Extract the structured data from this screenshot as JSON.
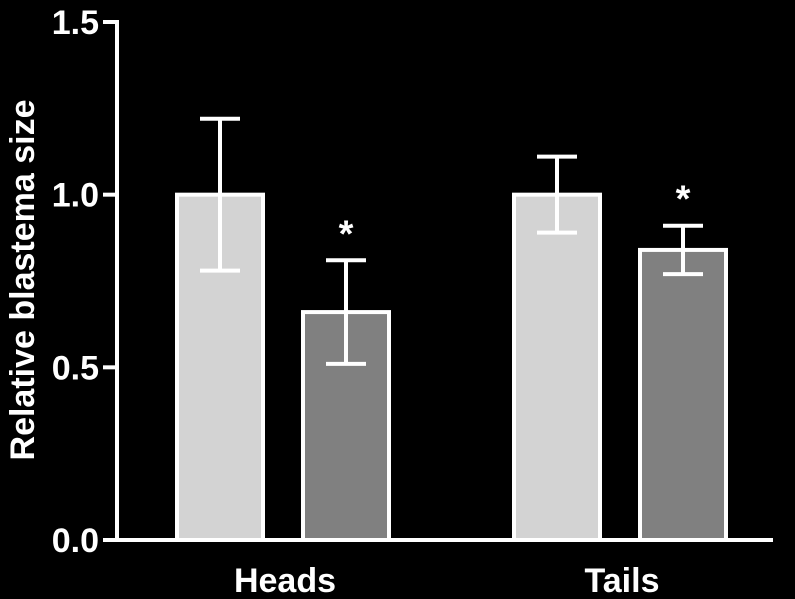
{
  "chart_data": {
    "type": "bar",
    "categories": [
      "Heads",
      "Tails"
    ],
    "series": [
      {
        "values": [
          1.0,
          1.0
        ],
        "errors": [
          0.22,
          0.11
        ],
        "color": "#d3d3d3"
      },
      {
        "values": [
          0.66,
          0.84
        ],
        "errors": [
          0.15,
          0.07
        ],
        "color": "#808080"
      }
    ],
    "annotations": [
      {
        "category": "Heads",
        "series_index": 1,
        "text": "*"
      },
      {
        "category": "Tails",
        "series_index": 1,
        "text": "*"
      }
    ],
    "title": "",
    "xlabel": "",
    "ylabel": "Relative blastema size",
    "ylim": [
      0,
      1.5
    ],
    "yticks": [
      "0.0",
      "0.5",
      "1.0",
      "1.5"
    ],
    "grid": false,
    "background": "#000000",
    "axis_color": "#ffffff",
    "bar_outline_color": "#ffffff"
  }
}
